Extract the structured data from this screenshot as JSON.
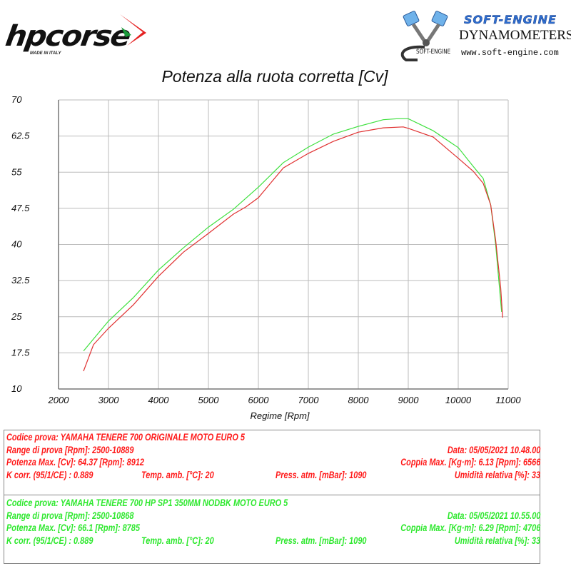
{
  "logos": {
    "hpcorse": {
      "name": "hpcorse",
      "tagline": "MADE IN ITALY"
    },
    "softengine": {
      "title": "SOFT-ENGINE",
      "subtitle": "DYNAMOMETERS",
      "url": "www.soft-engine.com",
      "brand": "SOFT-ENGINE"
    }
  },
  "chart_data": {
    "type": "line",
    "title": "Potenza alla ruota corretta [Cv]",
    "xlabel": "Regime [Rpm]",
    "ylabel": "",
    "xlim": [
      2000,
      11000
    ],
    "ylim": [
      10,
      70
    ],
    "xticks": [
      "2000",
      "3000",
      "4000",
      "5000",
      "6000",
      "7000",
      "8000",
      "9000",
      "10000",
      "11000"
    ],
    "yticks": [
      "70",
      "62.5",
      "55",
      "47.5",
      "40",
      "32.5",
      "25",
      "17.5",
      "10"
    ],
    "grid": true,
    "series": [
      {
        "name": "YAMAHA TENERE 700 ORIGINALE MOTO EURO 5",
        "color": "#e03030",
        "x": [
          2500,
          2700,
          3000,
          3500,
          4000,
          4500,
          5000,
          5500,
          5750,
          6000,
          6500,
          7000,
          7500,
          8000,
          8500,
          8900,
          9000,
          9500,
          10000,
          10300,
          10500,
          10650,
          10750,
          10850,
          10889
        ],
        "y": [
          13.7,
          19.2,
          22.6,
          27.5,
          33.4,
          38.4,
          42.3,
          46.3,
          47.8,
          49.7,
          55.9,
          58.9,
          61.4,
          63.3,
          64.2,
          64.4,
          64.1,
          62.3,
          57.9,
          55.2,
          52.7,
          48.2,
          40.8,
          31.0,
          24.8
        ]
      },
      {
        "name": "YAMAHA TENERE 700 HP SP1 350MM NODBK MOTO EURO 5",
        "color": "#3ee03e",
        "x": [
          2500,
          3000,
          3500,
          4000,
          4500,
          5000,
          5500,
          6000,
          6500,
          7000,
          7500,
          8000,
          8500,
          8785,
          9000,
          9500,
          10000,
          10300,
          10500,
          10650,
          10750,
          10800,
          10868
        ],
        "y": [
          17.9,
          24.1,
          29.0,
          34.7,
          39.3,
          43.6,
          47.3,
          51.9,
          57.0,
          60.2,
          62.9,
          64.5,
          65.9,
          66.1,
          66.1,
          63.6,
          60.1,
          56.2,
          53.7,
          48.2,
          39.9,
          34.0,
          26.0
        ]
      }
    ]
  },
  "tests": [
    {
      "color": "#ff1a1a",
      "codice": "Codice prova: YAMAHA TENERE 700 ORIGINALE  MOTO EURO 5",
      "range": "Range di prova [Rpm]: 2500-10889",
      "data": "Data: 05/05/2021   10.48.00",
      "potenza": "Potenza Max. [Cv]: 64.37   [Rpm]: 8912",
      "coppia": "Coppia Max. [Kg·m]: 6.13   [Rpm]: 6566",
      "kcorr": "K corr. (95/1/CE) : 0.889",
      "temp": "Temp. amb. [°C]: 20",
      "press": "Press. atm. [mBar]: 1090",
      "umidita": "Umidità relativa [%]: 33"
    },
    {
      "color": "#2ee82e",
      "codice": "Codice prova: YAMAHA TENERE 700 HP SP1 350MM NODBK  MOTO EURO 5",
      "range": "Range di prova [Rpm]: 2500-10868",
      "data": "Data: 05/05/2021   10.55.00",
      "potenza": "Potenza Max. [Cv]: 66.1   [Rpm]: 8785",
      "coppia": "Coppia Max. [Kg·m]: 6.29   [Rpm]: 4706",
      "kcorr": "K corr. (95/1/CE) : 0.889",
      "temp": "Temp. amb. [°C]: 20",
      "press": "Press. atm. [mBar]: 1090",
      "umidita": "Umidità relativa [%]: 33"
    }
  ]
}
